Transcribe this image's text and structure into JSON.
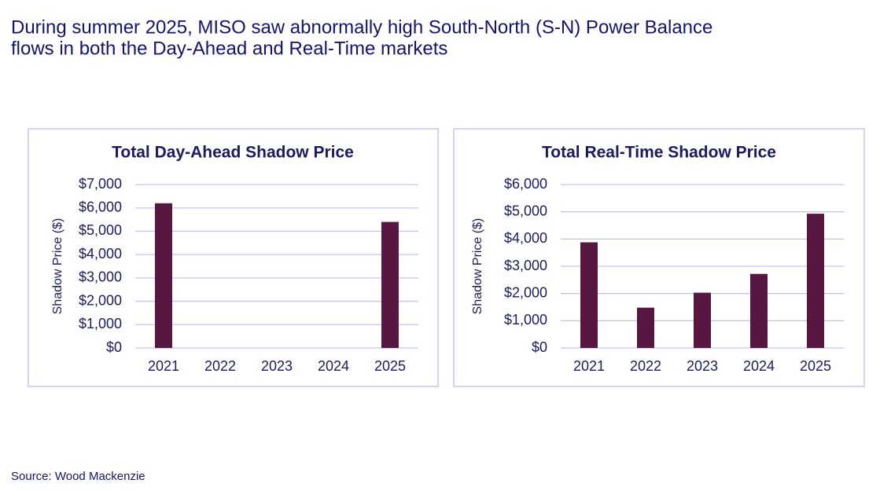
{
  "header": {
    "title_lines": [
      "During summer 2025, MISO saw abnormally high South-North (S-N) Power Balance",
      "flows in both the Day-Ahead and Real-Time markets"
    ]
  },
  "source": "Source: Wood Mackenzie",
  "chart_data": [
    {
      "type": "bar",
      "title": "Total Day-Ahead Shadow Price",
      "y_label": "Shadow Price ($)",
      "categories": [
        "2021",
        "2022",
        "2023",
        "2024",
        "2025"
      ],
      "values": [
        6200,
        0,
        0,
        0,
        5400
      ],
      "color": "#561840",
      "ylim": [
        0,
        7000
      ],
      "yticks": [
        {
          "value": 0,
          "label": "$0"
        },
        {
          "value": 1000,
          "label": "$1,000"
        },
        {
          "value": 2000,
          "label": "$2,000"
        },
        {
          "value": 3000,
          "label": "$3,000"
        },
        {
          "value": 4000,
          "label": "$4,000"
        },
        {
          "value": 5000,
          "label": "$5,000"
        },
        {
          "value": 6000,
          "label": "$6,000"
        },
        {
          "value": 7000,
          "label": "$7,000"
        }
      ],
      "grid": true
    },
    {
      "type": "bar",
      "title": "Total Real-Time Shadow Price",
      "y_label": "Shadow Price ($)",
      "categories": [
        "2021",
        "2022",
        "2023",
        "2024",
        "2025"
      ],
      "values": [
        3880,
        1480,
        2030,
        2720,
        4930
      ],
      "color": "#561840",
      "ylim": [
        0,
        6000
      ],
      "yticks": [
        {
          "value": 0,
          "label": "$0"
        },
        {
          "value": 1000,
          "label": "$1,000"
        },
        {
          "value": 2000,
          "label": "$2,000"
        },
        {
          "value": 3000,
          "label": "$3,000"
        },
        {
          "value": 4000,
          "label": "$4,000"
        },
        {
          "value": 5000,
          "label": "$5,000"
        },
        {
          "value": 6000,
          "label": "$6,000"
        }
      ],
      "grid": true
    }
  ]
}
